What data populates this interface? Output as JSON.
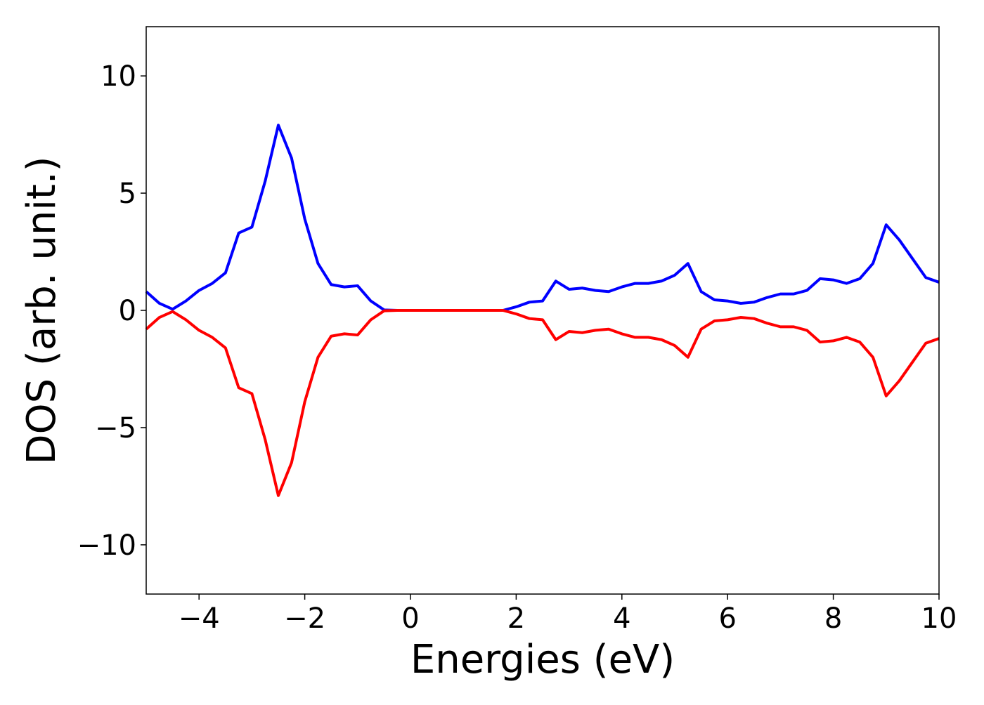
{
  "chart_data": {
    "type": "line",
    "xlabel": "Energies (eV)",
    "ylabel": "DOS (arb. unit.)",
    "x": [
      -5,
      -4.75,
      -4.5,
      -4.25,
      -4,
      -3.75,
      -3.5,
      -3.25,
      -3,
      -2.75,
      -2.5,
      -2.25,
      -2,
      -1.75,
      -1.5,
      -1.25,
      -1,
      -0.75,
      -0.5,
      -0.25,
      0,
      0.25,
      0.5,
      0.75,
      1,
      1.25,
      1.5,
      1.75,
      2,
      2.25,
      2.5,
      2.75,
      3,
      3.25,
      3.5,
      3.75,
      4,
      4.25,
      4.5,
      4.75,
      5,
      5.25,
      5.5,
      5.75,
      6,
      6.25,
      6.5,
      6.75,
      7,
      7.25,
      7.5,
      7.75,
      8,
      8.25,
      8.5,
      8.75,
      9,
      9.25,
      9.5,
      9.75,
      10
    ],
    "series": [
      {
        "color": "#0000ff",
        "values": [
          0.8,
          0.3,
          0.05,
          0.4,
          0.85,
          1.15,
          1.6,
          3.3,
          3.55,
          5.5,
          7.9,
          6.5,
          3.9,
          2.0,
          1.1,
          1.0,
          1.05,
          0.4,
          0.02,
          0,
          0,
          0,
          0,
          0,
          0,
          0,
          0,
          0,
          0.15,
          0.35,
          0.4,
          1.25,
          0.9,
          0.95,
          0.85,
          0.8,
          1.0,
          1.15,
          1.15,
          1.25,
          1.5,
          2.0,
          0.8,
          0.45,
          0.4,
          0.3,
          0.35,
          0.55,
          0.7,
          0.7,
          0.85,
          1.35,
          1.3,
          1.15,
          1.35,
          2.0,
          3.65,
          3.0,
          2.2,
          1.4,
          1.2
        ]
      },
      {
        "color": "#ff0000",
        "values": [
          -0.8,
          -0.3,
          -0.05,
          -0.4,
          -0.85,
          -1.15,
          -1.6,
          -3.3,
          -3.55,
          -5.5,
          -7.9,
          -6.5,
          -3.9,
          -2.0,
          -1.1,
          -1.0,
          -1.05,
          -0.4,
          -0.02,
          0,
          0,
          0,
          0,
          0,
          0,
          0,
          0,
          0,
          -0.15,
          -0.35,
          -0.4,
          -1.25,
          -0.9,
          -0.95,
          -0.85,
          -0.8,
          -1.0,
          -1.15,
          -1.15,
          -1.25,
          -1.5,
          -2.0,
          -0.8,
          -0.45,
          -0.4,
          -0.3,
          -0.35,
          -0.55,
          -0.7,
          -0.7,
          -0.85,
          -1.35,
          -1.3,
          -1.15,
          -1.35,
          -2.0,
          -3.65,
          -3.0,
          -2.2,
          -1.4,
          -1.2
        ]
      }
    ],
    "xlim": [
      -5,
      10
    ],
    "xticks": [
      {
        "value": -4,
        "label": "−4"
      },
      {
        "value": -2,
        "label": "−2"
      },
      0,
      2,
      4,
      6,
      8,
      10
    ],
    "ylim": [
      -12.1,
      12.1
    ],
    "yticks": [
      {
        "value": -10,
        "label": "−10"
      },
      {
        "value": -5,
        "label": "−5"
      },
      0,
      5,
      10
    ]
  }
}
